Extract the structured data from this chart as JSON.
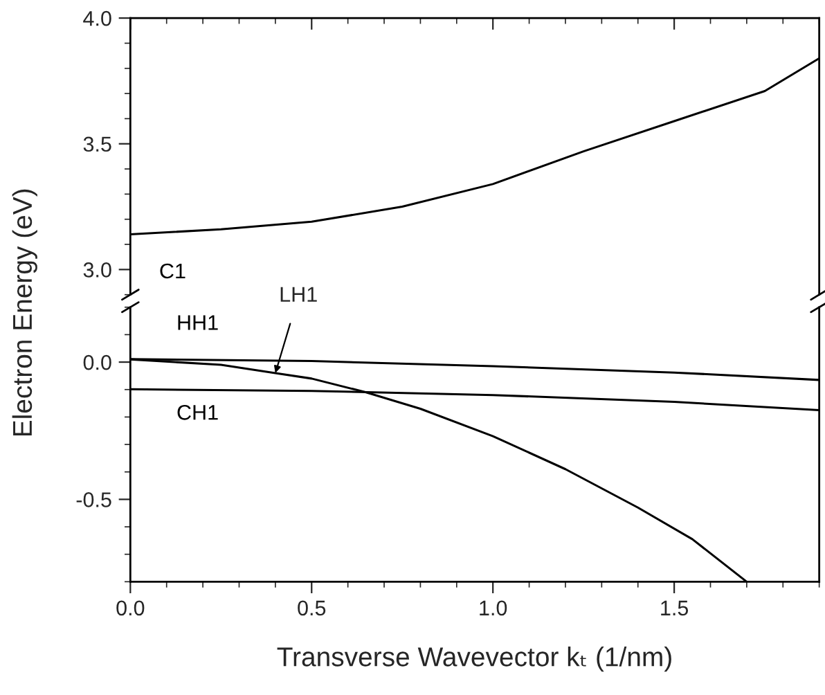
{
  "chart_data": [
    {
      "type": "line",
      "ylabel": "Electron Energy (eV)",
      "xlim": [
        0.0,
        1.9
      ],
      "ylim": [
        2.9,
        4.0
      ],
      "yticks": [
        {
          "value": 3,
          "label": "3.0"
        },
        3.5,
        {
          "value": 4,
          "label": "4.0"
        }
      ],
      "tick_labels": "y",
      "grid": false,
      "legend": false,
      "series": [
        {
          "name": "C1",
          "color": "#000000",
          "x": [
            0.0,
            0.25,
            0.5,
            0.75,
            1.0,
            1.25,
            1.5,
            1.75,
            1.9
          ],
          "values": [
            3.14,
            3.16,
            3.19,
            3.25,
            3.34,
            3.47,
            3.59,
            3.71,
            3.84
          ]
        }
      ]
    },
    {
      "type": "line",
      "xlabel": "Transverse Wavevector kₜ (1/nm)",
      "xlim": [
        0.0,
        1.9
      ],
      "xticks": [
        {
          "value": 0,
          "label": "0.0"
        },
        0.5,
        {
          "value": 1,
          "label": "1.0"
        },
        1.5
      ],
      "ylim": [
        -0.8,
        0.2
      ],
      "yticks": [
        -0.5,
        {
          "value": 0,
          "label": "0.0"
        }
      ],
      "grid": false,
      "legend": false,
      "series": [
        {
          "name": "HH1",
          "color": "#000000",
          "x": [
            0.0,
            0.5,
            1.0,
            1.5,
            1.9
          ],
          "values": [
            0.011,
            0.004,
            -0.015,
            -0.038,
            -0.065
          ]
        },
        {
          "name": "CH1",
          "color": "#000000",
          "x": [
            0.0,
            0.5,
            1.0,
            1.5,
            1.9
          ],
          "values": [
            -0.099,
            -0.105,
            -0.12,
            -0.145,
            -0.175
          ]
        },
        {
          "name": "LH1",
          "color": "#000000",
          "x": [
            0.0,
            0.25,
            0.4,
            0.5,
            0.65,
            0.8,
            1.0,
            1.2,
            1.4,
            1.55,
            1.7
          ],
          "values": [
            0.01,
            -0.01,
            -0.04,
            -0.06,
            -0.11,
            -0.17,
            -0.27,
            -0.39,
            -0.53,
            -0.645,
            -0.8
          ]
        }
      ]
    }
  ]
}
